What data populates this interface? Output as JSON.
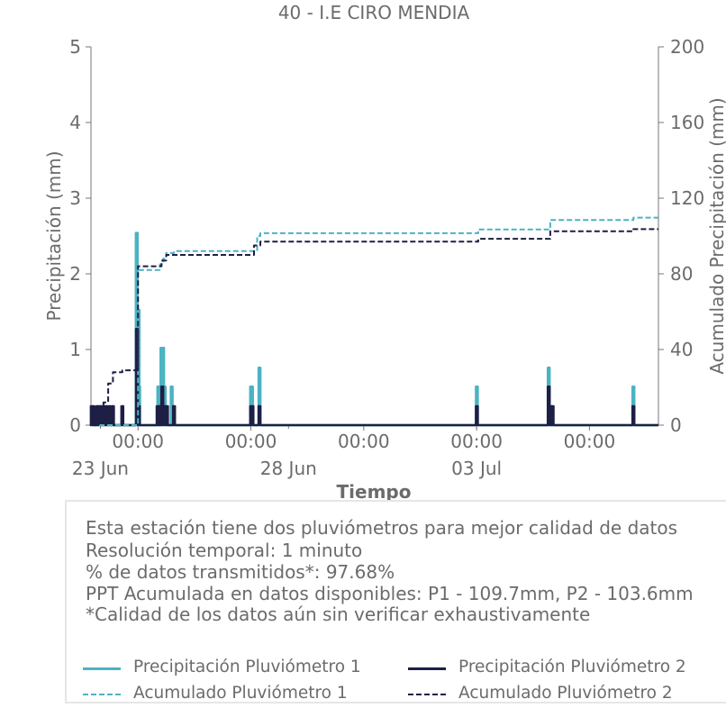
{
  "chart_data": {
    "type": "line",
    "title": "40 - I.E CIRO MENDIA",
    "xlabel": "Tiempo",
    "ylabel": "Precipitación (mm)",
    "ylabel_right": "Acumulado Precipitación (mm)",
    "x_range": [
      "2023-06-22 18:00",
      "2023-07-07 20:00"
    ],
    "ylim": [
      0,
      5
    ],
    "ylim_right": [
      0,
      200
    ],
    "yticks": [
      "0",
      "1",
      "2",
      "3",
      "4",
      "5"
    ],
    "yticks_right": [
      "0",
      "40",
      "80",
      "120",
      "160",
      "200"
    ],
    "x_tick_dates": [
      "2023-06-24 00:00",
      "2023-06-27 00:00",
      "2023-06-30 00:00",
      "2023-07-03 00:00",
      "2023-07-06 00:00"
    ],
    "x_ticks_top": [
      "00:00",
      "00:00",
      "00:00",
      "00:00",
      "00:00"
    ],
    "x_ticks_bottom": [
      {
        "date": "2023-06-23 00:00",
        "label": "23 Jun"
      },
      {
        "date": "2023-06-28 00:00",
        "label": "28 Jun"
      },
      {
        "date": "2023-07-03 00:00",
        "label": "03 Jul"
      }
    ],
    "grid": false,
    "series": [
      {
        "name": "Precipitación Pluviómetro 1",
        "axis": "left",
        "style": "solid",
        "color": "#4bb3c2",
        "points": [
          [
            "2023-06-23 23:10",
            2.54
          ],
          [
            "2023-06-24 00:20",
            1.52
          ],
          [
            "2023-06-24 00:45",
            0.51
          ],
          [
            "2023-06-24 13:00",
            0.51
          ],
          [
            "2023-06-24 13:30",
            0.51
          ],
          [
            "2023-06-24 15:00",
            1.02
          ],
          [
            "2023-06-24 16:00",
            1.02
          ],
          [
            "2023-06-24 17:00",
            0.51
          ],
          [
            "2023-06-24 21:30",
            0.51
          ],
          [
            "2023-06-27 00:10",
            0.51
          ],
          [
            "2023-06-27 00:40",
            0.51
          ],
          [
            "2023-06-27 05:30",
            0.76
          ],
          [
            "2023-07-03 00:10",
            0.51
          ],
          [
            "2023-07-04 22:00",
            0.76
          ],
          [
            "2023-07-07 04:00",
            0.51
          ]
        ]
      },
      {
        "name": "Precipitación Pluviómetro 2",
        "axis": "left",
        "style": "solid",
        "color": "#1d1f45",
        "points": [
          [
            "2023-06-22 18:30",
            0.25
          ],
          [
            "2023-06-22 19:30",
            0.25
          ],
          [
            "2023-06-22 22:00",
            0.25
          ],
          [
            "2023-06-22 23:30",
            0.25
          ],
          [
            "2023-06-23 01:00",
            0.25
          ],
          [
            "2023-06-23 02:30",
            0.25
          ],
          [
            "2023-06-23 04:00",
            0.25
          ],
          [
            "2023-06-23 06:00",
            0.25
          ],
          [
            "2023-06-23 08:00",
            0.25
          ],
          [
            "2023-06-23 14:00",
            0.25
          ],
          [
            "2023-06-23 23:20",
            1.27
          ],
          [
            "2023-06-24 00:30",
            0.25
          ],
          [
            "2023-06-24 12:30",
            0.25
          ],
          [
            "2023-06-24 13:30",
            0.25
          ],
          [
            "2023-06-24 14:00",
            0.25
          ],
          [
            "2023-06-24 15:30",
            0.51
          ],
          [
            "2023-06-24 17:00",
            0.25
          ],
          [
            "2023-06-24 18:30",
            0.25
          ],
          [
            "2023-06-24 23:00",
            0.25
          ],
          [
            "2023-06-27 00:10",
            0.25
          ],
          [
            "2023-06-27 01:00",
            0.25
          ],
          [
            "2023-06-27 05:30",
            0.25
          ],
          [
            "2023-07-03 00:10",
            0.25
          ],
          [
            "2023-07-04 22:00",
            0.51
          ],
          [
            "2023-07-04 23:30",
            0.25
          ],
          [
            "2023-07-05 00:30",
            0.25
          ],
          [
            "2023-07-07 04:00",
            0.25
          ]
        ]
      },
      {
        "name": "Acumulado Pluviómetro 1",
        "axis": "right",
        "style": "dashed",
        "color": "#4bb3c2",
        "points": [
          [
            "2023-06-22 18:00",
            0
          ],
          [
            "2023-06-23 23:00",
            0
          ],
          [
            "2023-06-24 00:00",
            82
          ],
          [
            "2023-06-24 12:00",
            82
          ],
          [
            "2023-06-24 14:00",
            85
          ],
          [
            "2023-06-24 16:00",
            88
          ],
          [
            "2023-06-24 18:00",
            91
          ],
          [
            "2023-06-24 23:00",
            92
          ],
          [
            "2023-06-27 00:00",
            92
          ],
          [
            "2023-06-27 04:00",
            100
          ],
          [
            "2023-06-27 06:00",
            101.5
          ],
          [
            "2023-07-03 00:00",
            101.5
          ],
          [
            "2023-07-03 01:00",
            103.5
          ],
          [
            "2023-07-04 22:00",
            103.5
          ],
          [
            "2023-07-04 23:00",
            108.5
          ],
          [
            "2023-07-07 02:00",
            108.5
          ],
          [
            "2023-07-07 04:00",
            109.7
          ],
          [
            "2023-07-07 20:00",
            109.7
          ]
        ]
      },
      {
        "name": "Acumulado Pluviómetro 2",
        "axis": "right",
        "style": "dashed",
        "color": "#1d1f45",
        "points": [
          [
            "2023-06-22 18:00",
            0
          ],
          [
            "2023-06-22 23:00",
            2
          ],
          [
            "2023-06-23 02:00",
            12
          ],
          [
            "2023-06-23 05:00",
            22
          ],
          [
            "2023-06-23 08:00",
            28
          ],
          [
            "2023-06-23 14:00",
            29
          ],
          [
            "2023-06-23 23:00",
            29
          ],
          [
            "2023-06-24 00:00",
            84
          ],
          [
            "2023-06-24 12:00",
            84
          ],
          [
            "2023-06-24 15:00",
            87
          ],
          [
            "2023-06-24 18:00",
            90
          ],
          [
            "2023-06-27 00:00",
            90
          ],
          [
            "2023-06-27 02:00",
            95
          ],
          [
            "2023-06-27 06:00",
            97
          ],
          [
            "2023-07-03 00:00",
            97
          ],
          [
            "2023-07-03 01:00",
            98.5
          ],
          [
            "2023-07-04 22:00",
            98.5
          ],
          [
            "2023-07-04 23:00",
            102.5
          ],
          [
            "2023-07-07 02:00",
            102.5
          ],
          [
            "2023-07-07 04:00",
            103.6
          ],
          [
            "2023-07-07 20:00",
            103.6
          ]
        ]
      }
    ]
  },
  "info": {
    "lines": [
      "Esta estación tiene dos pluviómetros para mejor calidad de datos",
      "Resolución temporal: 1 minuto",
      "% de datos transmitidos*: 97.68%",
      "PPT Acumulada en datos disponibles: P1 - 109.7mm, P2 - 103.6mm",
      "*Calidad de los datos aún sin verificar exhaustivamente"
    ]
  },
  "legend": {
    "items": [
      {
        "label": "Precipitación Pluviómetro 1",
        "color": "#4bb3c2",
        "style": "solid"
      },
      {
        "label": "Precipitación Pluviómetro 2",
        "color": "#1d1f45",
        "style": "solid"
      },
      {
        "label": "Acumulado Pluviómetro 1",
        "color": "#4bb3c2",
        "style": "dashed"
      },
      {
        "label": "Acumulado Pluviómetro 2",
        "color": "#1d1f45",
        "style": "dashed"
      }
    ]
  }
}
